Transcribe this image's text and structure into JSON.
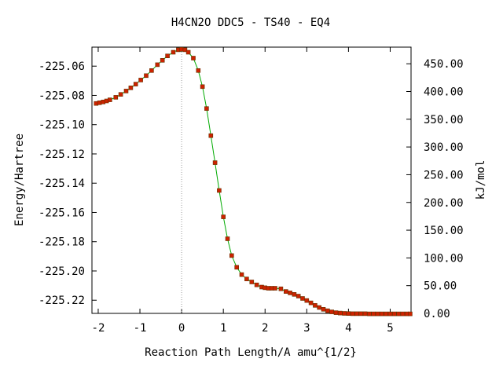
{
  "chart_data": {
    "type": "scatter",
    "title": "H4CN2O   DDC5 - TS40 - EQ4",
    "xlabel": "Reaction Path Length/A amu^{1/2}",
    "ylabel": "Energy/Hartree",
    "y2label": "kJ/mol",
    "xlim": [
      -2.15,
      5.5
    ],
    "ylim": [
      -225.229,
      -225.047
    ],
    "y2lim": [
      0,
      480
    ],
    "x_ticks": [
      -2,
      -1,
      0,
      1,
      2,
      3,
      4,
      5
    ],
    "x_tick_labels": [
      "-2",
      "-1",
      "0",
      "1",
      "2",
      "3",
      "4",
      "5"
    ],
    "y_ticks": [
      -225.06,
      -225.08,
      -225.1,
      -225.12,
      -225.14,
      -225.16,
      -225.18,
      -225.2,
      -225.22
    ],
    "y_tick_labels": [
      "-225.06",
      "-225.08",
      "-225.10",
      "-225.12",
      "-225.14",
      "-225.16",
      "-225.18",
      "-225.20",
      "-225.22"
    ],
    "y2_ticks": [
      0,
      50,
      100,
      150,
      200,
      250,
      300,
      350,
      400,
      450
    ],
    "y2_tick_labels": [
      "0.00",
      "50.00",
      "100.00",
      "150.00",
      "200.00",
      "250.00",
      "300.00",
      "350.00",
      "400.00",
      "450.00"
    ],
    "ts_marker_x": 0,
    "grid": false,
    "colors": {
      "marker": "#cc2200",
      "marker_edge": "#663300",
      "line": "#00aa00",
      "ts_line": "#999999"
    },
    "series": [
      {
        "x": [
          -2.05,
          -1.97,
          -1.88,
          -1.8,
          -1.72,
          -1.58,
          -1.46,
          -1.33,
          -1.22,
          -1.1,
          -0.98,
          -0.85,
          -0.72,
          -0.58,
          -0.46,
          -0.34,
          -0.2,
          -0.08,
          0.0,
          0.08,
          0.16,
          0.28,
          0.4,
          0.5,
          0.6,
          0.7,
          0.8,
          0.9,
          1.0,
          1.1,
          1.2,
          1.32,
          1.44,
          1.56,
          1.68,
          1.8,
          1.92,
          2.0,
          2.08,
          2.16,
          2.24,
          2.38,
          2.5,
          2.6,
          2.7,
          2.8,
          2.9,
          3.0,
          3.1,
          3.2,
          3.3,
          3.4,
          3.5,
          3.6,
          3.7,
          3.8,
          3.9,
          4.0,
          4.1,
          4.2,
          4.3,
          4.4,
          4.5,
          4.6,
          4.7,
          4.8,
          4.9,
          5.0,
          5.1,
          5.2,
          5.3,
          5.4,
          5.48
        ],
        "y": [
          -225.0855,
          -225.085,
          -225.0845,
          -225.0838,
          -225.083,
          -225.0813,
          -225.0793,
          -225.077,
          -225.0748,
          -225.0723,
          -225.0695,
          -225.0665,
          -225.063,
          -225.059,
          -225.056,
          -225.053,
          -225.0505,
          -225.0488,
          -225.0485,
          -225.0488,
          -225.0505,
          -225.0545,
          -225.063,
          -225.074,
          -225.089,
          -225.1075,
          -225.126,
          -225.145,
          -225.163,
          -225.178,
          -225.1895,
          -225.1975,
          -225.2025,
          -225.2055,
          -225.2075,
          -225.2095,
          -225.211,
          -225.2115,
          -225.2118,
          -225.2118,
          -225.2118,
          -225.2122,
          -225.214,
          -225.215,
          -225.216,
          -225.2172,
          -225.2188,
          -225.2202,
          -225.2218,
          -225.2235,
          -225.225,
          -225.2262,
          -225.2272,
          -225.228,
          -225.2285,
          -225.2288,
          -225.229,
          -225.2291,
          -225.2292,
          -225.2292,
          -225.2292,
          -225.2292,
          -225.2293,
          -225.2293,
          -225.2293,
          -225.2293,
          -225.2293,
          -225.2293,
          -225.2293,
          -225.2293,
          -225.2293,
          -225.2293,
          -225.2293
        ]
      }
    ]
  }
}
